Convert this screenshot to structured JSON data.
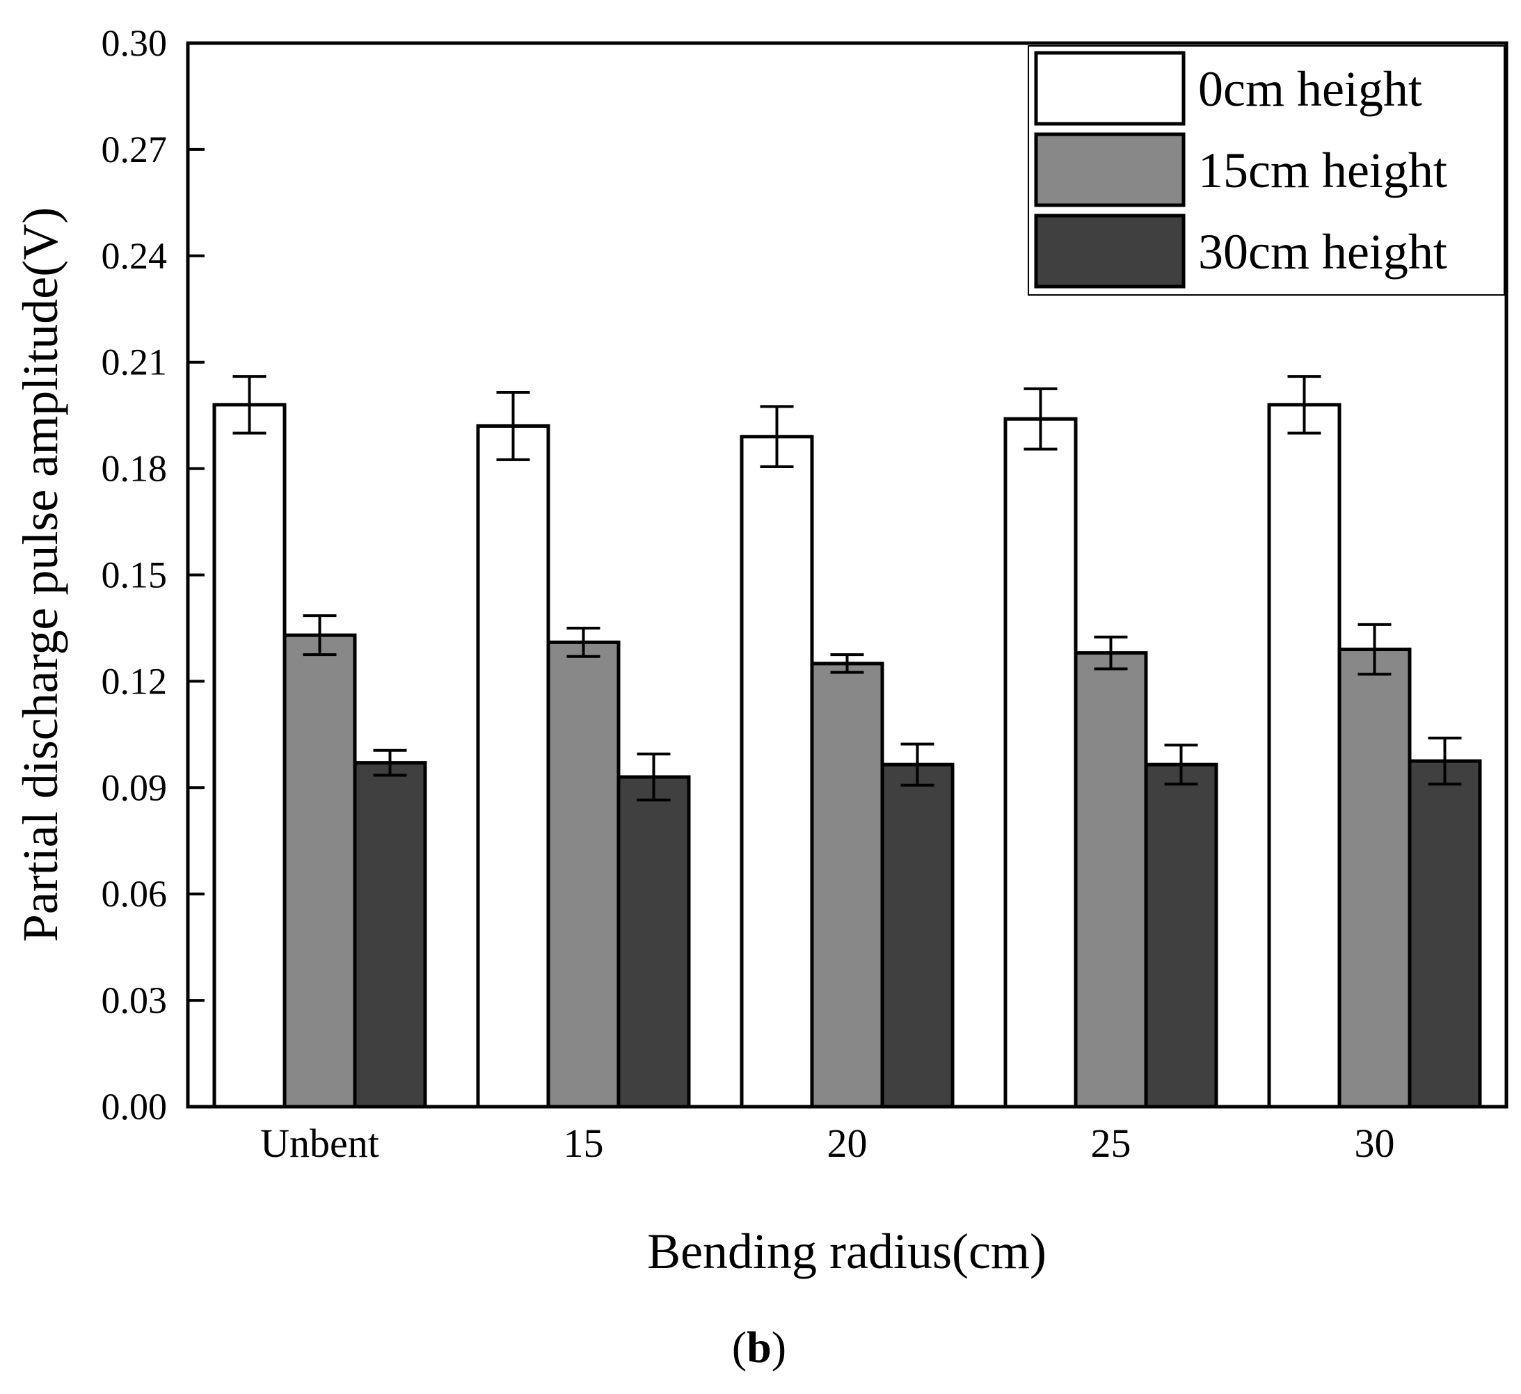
{
  "chart_data": {
    "type": "bar",
    "title": "",
    "xlabel": "Bending radius(cm)",
    "ylabel": "Partial discharge pulse amplitude(V)",
    "ylim": [
      0,
      0.3
    ],
    "yticks": [
      "0.00",
      "0.03",
      "0.06",
      "0.09",
      "0.12",
      "0.15",
      "0.18",
      "0.21",
      "0.24",
      "0.27",
      "0.30"
    ],
    "categories": [
      "Unbent",
      "15",
      "20",
      "25",
      "30"
    ],
    "series": [
      {
        "name": "0cm height",
        "color": "#ffffff",
        "values": [
          0.198,
          0.192,
          0.189,
          0.194,
          0.198
        ],
        "errors": [
          0.008,
          0.0095,
          0.0085,
          0.0085,
          0.008
        ]
      },
      {
        "name": "15cm height",
        "color": "#888888",
        "values": [
          0.133,
          0.131,
          0.125,
          0.128,
          0.129
        ],
        "errors": [
          0.0055,
          0.004,
          0.0025,
          0.0045,
          0.007
        ]
      },
      {
        "name": "30cm height",
        "color": "#404040",
        "values": [
          0.097,
          0.093,
          0.0965,
          0.0965,
          0.0975
        ],
        "errors": [
          0.0035,
          0.0065,
          0.0058,
          0.0055,
          0.0065
        ]
      }
    ],
    "legend_position": "top-right",
    "grid": false
  },
  "panel_label": {
    "open": "(",
    "letter": "b",
    "close": ")"
  }
}
